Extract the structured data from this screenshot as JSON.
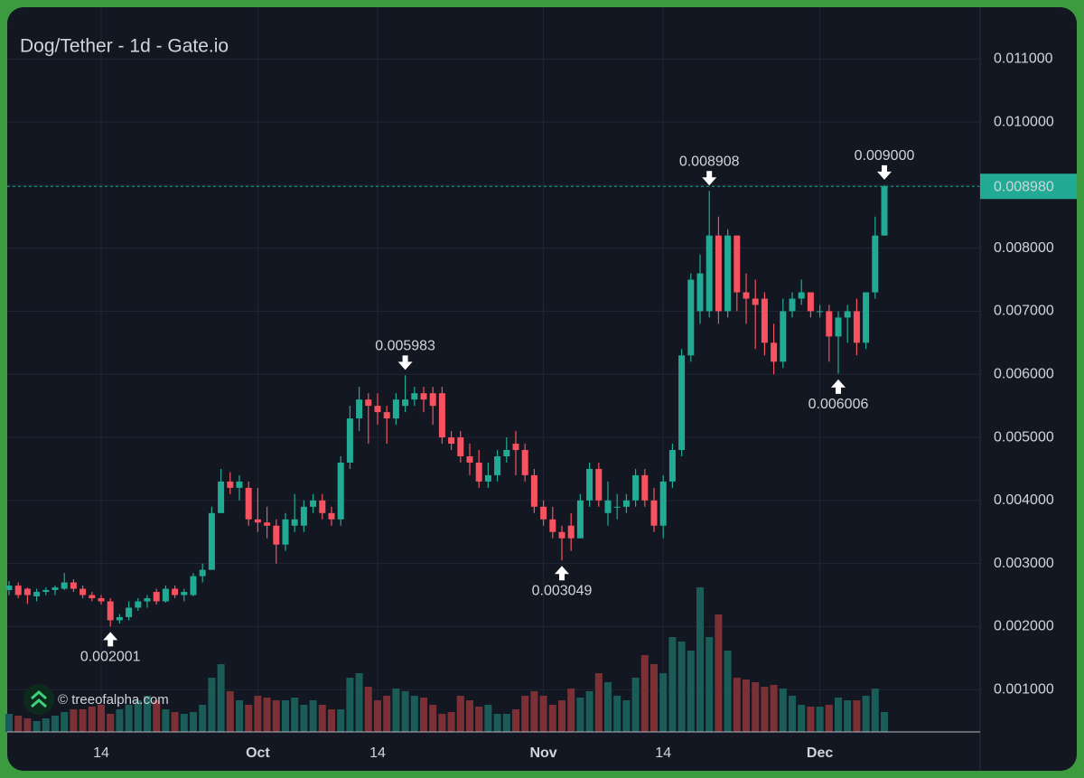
{
  "chart_data": {
    "type": "candlestick",
    "title": "Dog/Tether - 1d - Gate.io",
    "watermark": "© treeofalpha.com",
    "categories": [
      null,
      null,
      null,
      null,
      null,
      null,
      null,
      null,
      null,
      null,
      "14",
      null,
      null,
      null,
      null,
      null,
      null,
      null,
      null,
      null,
      null,
      null,
      null,
      null,
      null,
      null,
      null,
      "Oct",
      null,
      null,
      null,
      null,
      null,
      null,
      null,
      null,
      null,
      null,
      null,
      null,
      "14",
      null,
      null,
      null,
      null,
      null,
      null,
      null,
      null,
      null,
      null,
      null,
      null,
      null,
      null,
      null,
      null,
      null,
      "Nov",
      null,
      null,
      null,
      null,
      null,
      null,
      null,
      null,
      null,
      null,
      null,
      null,
      "14",
      null,
      null,
      null,
      null,
      null,
      null,
      null,
      null,
      null,
      null,
      null,
      null,
      null,
      null,
      null,
      null,
      "Dec",
      null,
      null,
      null,
      null,
      null,
      null,
      null
    ],
    "open": [
      0.00258,
      0.00265,
      0.0026,
      0.00248,
      0.00255,
      0.00258,
      0.0026,
      0.0027,
      0.0026,
      0.0025,
      0.00245,
      0.0024,
      0.0021,
      0.00215,
      0.0023,
      0.0024,
      0.00255,
      0.0024,
      0.0026,
      0.0025,
      0.0025,
      0.0028,
      0.0029,
      0.0038,
      0.0043,
      0.0042,
      0.0042,
      0.0037,
      0.00365,
      0.0036,
      0.0033,
      0.0036,
      0.0036,
      0.0039,
      0.004,
      0.0038,
      0.0037,
      0.0046,
      0.0053,
      0.0056,
      0.0055,
      0.0054,
      0.0053,
      0.0055,
      0.0056,
      0.0057,
      0.0057,
      0.0057,
      0.005,
      0.005,
      0.0047,
      0.0046,
      0.0043,
      0.0044,
      0.0047,
      0.0049,
      0.0048,
      0.0044,
      0.0039,
      0.0037,
      0.0035,
      0.0036,
      0.0034,
      0.004,
      0.0045,
      0.0038,
      0.0039,
      0.0039,
      0.004,
      0.0044,
      0.004,
      0.0036,
      0.0043,
      0.0048,
      0.0063,
      0.007,
      0.007,
      0.0082,
      0.007,
      0.0082,
      0.0073,
      0.0072,
      0.0072,
      0.0065,
      0.0062,
      0.007,
      0.0072,
      0.0073,
      0.007,
      0.007,
      0.0066,
      0.0069,
      0.007,
      0.0065,
      0.0073,
      0.0082
    ],
    "high": [
      0.00272,
      0.0027,
      0.00262,
      0.0026,
      0.00262,
      0.00265,
      0.00285,
      0.00275,
      0.00265,
      0.00255,
      0.0025,
      0.00245,
      0.0022,
      0.0024,
      0.00245,
      0.0025,
      0.0026,
      0.00265,
      0.00265,
      0.0026,
      0.00285,
      0.003,
      0.0039,
      0.0045,
      0.00445,
      0.0044,
      0.0043,
      0.0042,
      0.0039,
      0.0037,
      0.0038,
      0.0041,
      0.004,
      0.0041,
      0.0041,
      0.0039,
      0.0047,
      0.0055,
      0.0058,
      0.0057,
      0.0057,
      0.0055,
      0.0057,
      0.005983,
      0.0058,
      0.0058,
      0.0058,
      0.0058,
      0.0051,
      0.0051,
      0.0049,
      0.0048,
      0.0046,
      0.0048,
      0.005,
      0.0051,
      0.0049,
      0.0045,
      0.004,
      0.0039,
      0.0036,
      0.0038,
      0.0041,
      0.0046,
      0.0046,
      0.0043,
      0.0041,
      0.0041,
      0.0045,
      0.0045,
      0.0042,
      0.0044,
      0.0049,
      0.0064,
      0.0076,
      0.0079,
      0.008908,
      0.0085,
      0.0083,
      0.0082,
      0.0076,
      0.0075,
      0.0073,
      0.0068,
      0.0072,
      0.0073,
      0.0075,
      0.0073,
      0.0071,
      0.0071,
      0.007,
      0.0071,
      0.0072,
      0.0073,
      0.0085,
      0.009
    ],
    "low": [
      0.0025,
      0.00245,
      0.00236,
      0.0024,
      0.0025,
      0.0025,
      0.00258,
      0.00255,
      0.00245,
      0.0024,
      0.00235,
      0.002001,
      0.00205,
      0.0021,
      0.00225,
      0.0023,
      0.00235,
      0.00238,
      0.00245,
      0.0024,
      0.00248,
      0.0027,
      0.0029,
      0.0038,
      0.0041,
      0.004,
      0.0036,
      0.0035,
      0.0034,
      0.003,
      0.0032,
      0.0035,
      0.0035,
      0.0038,
      0.0037,
      0.0036,
      0.0036,
      0.0045,
      0.0051,
      0.0049,
      0.0052,
      0.0049,
      0.0052,
      0.0054,
      0.0055,
      0.0054,
      0.0052,
      0.0049,
      0.0048,
      0.0046,
      0.0044,
      0.0042,
      0.0042,
      0.0043,
      0.0046,
      0.0044,
      0.0043,
      0.0038,
      0.0036,
      0.0034,
      0.003049,
      0.0032,
      0.0034,
      0.0039,
      0.0039,
      0.0036,
      0.0037,
      0.0038,
      0.0039,
      0.0039,
      0.0035,
      0.0034,
      0.0042,
      0.0047,
      0.0062,
      0.0068,
      0.0069,
      0.0068,
      0.0069,
      0.007,
      0.0068,
      0.0064,
      0.0063,
      0.006,
      0.0061,
      0.0069,
      0.0071,
      0.0069,
      0.0069,
      0.0062,
      0.006006,
      0.0065,
      0.0063,
      0.0064,
      0.0072,
      0.0082
    ],
    "close": [
      0.00265,
      0.0025,
      0.0025,
      0.00255,
      0.00258,
      0.00262,
      0.0027,
      0.0026,
      0.0025,
      0.00245,
      0.0024,
      0.0021,
      0.00215,
      0.0023,
      0.0024,
      0.00245,
      0.0024,
      0.0026,
      0.0025,
      0.00255,
      0.0028,
      0.0029,
      0.0038,
      0.0043,
      0.0042,
      0.0043,
      0.0037,
      0.00365,
      0.0036,
      0.0033,
      0.0037,
      0.0037,
      0.0039,
      0.004,
      0.0038,
      0.0037,
      0.0046,
      0.0053,
      0.0056,
      0.0055,
      0.0054,
      0.0053,
      0.0056,
      0.0056,
      0.0057,
      0.0056,
      0.0055,
      0.005,
      0.0049,
      0.0047,
      0.0046,
      0.0043,
      0.0044,
      0.0047,
      0.0048,
      0.0048,
      0.0044,
      0.0039,
      0.0037,
      0.0035,
      0.0034,
      0.0034,
      0.004,
      0.0045,
      0.004,
      0.004,
      0.0039,
      0.004,
      0.0044,
      0.004,
      0.0036,
      0.0043,
      0.0048,
      0.0063,
      0.0075,
      0.0076,
      0.0082,
      0.007,
      0.0082,
      0.0073,
      0.0072,
      0.0071,
      0.0065,
      0.0062,
      0.007,
      0.0072,
      0.0073,
      0.007,
      0.007,
      0.0066,
      0.0069,
      0.007,
      0.0065,
      0.0073,
      0.0082,
      0.00898
    ],
    "volume": [
      20,
      18,
      15,
      12,
      15,
      18,
      22,
      25,
      25,
      28,
      30,
      20,
      25,
      30,
      35,
      40,
      35,
      25,
      22,
      20,
      22,
      30,
      60,
      75,
      45,
      35,
      30,
      40,
      38,
      35,
      35,
      38,
      30,
      35,
      30,
      25,
      25,
      60,
      65,
      50,
      35,
      40,
      48,
      45,
      40,
      38,
      30,
      20,
      22,
      40,
      35,
      28,
      30,
      20,
      20,
      25,
      40,
      45,
      40,
      30,
      35,
      48,
      38,
      45,
      65,
      55,
      40,
      35,
      60,
      85,
      75,
      65,
      105,
      100,
      90,
      160,
      105,
      130,
      90,
      60,
      58,
      55,
      50,
      52,
      48,
      40,
      30,
      28,
      28,
      30,
      38,
      35,
      35,
      40,
      48,
      22
    ],
    "volume_ylim": [
      0,
      200
    ],
    "up_color": "#22ab94",
    "down_color": "#f7525f",
    "up_volume_color": "#1a5d58",
    "down_volume_color": "#7b3036",
    "ylim": [
      0.00033,
      0.01182
    ],
    "yticks": [
      {
        "value": 0.001,
        "label": "0.001000"
      },
      {
        "value": 0.002,
        "label": "0.002000"
      },
      {
        "value": 0.003,
        "label": "0.003000"
      },
      {
        "value": 0.004,
        "label": "0.004000"
      },
      {
        "value": 0.005,
        "label": "0.005000"
      },
      {
        "value": 0.006,
        "label": "0.006000"
      },
      {
        "value": 0.007,
        "label": "0.007000"
      },
      {
        "value": 0.008,
        "label": "0.008000"
      },
      {
        "value": 0.009,
        "label": "0.009000"
      },
      {
        "value": 0.01,
        "label": "0.010000"
      },
      {
        "value": 0.011,
        "label": "0.011000"
      }
    ],
    "grid": true,
    "last_price": {
      "value": 0.00898,
      "label": "0.008980"
    },
    "annotations": [
      {
        "value": 0.002001,
        "label": "0.002001"
      },
      {
        "value": 0.005983,
        "label": "0.005983"
      },
      {
        "value": 0.003049,
        "label": "0.003049"
      },
      {
        "value": 0.008908,
        "label": "0.008908"
      },
      {
        "value": 0.006006,
        "label": "0.006006"
      },
      {
        "value": 0.009,
        "label": "0.009000"
      }
    ]
  }
}
